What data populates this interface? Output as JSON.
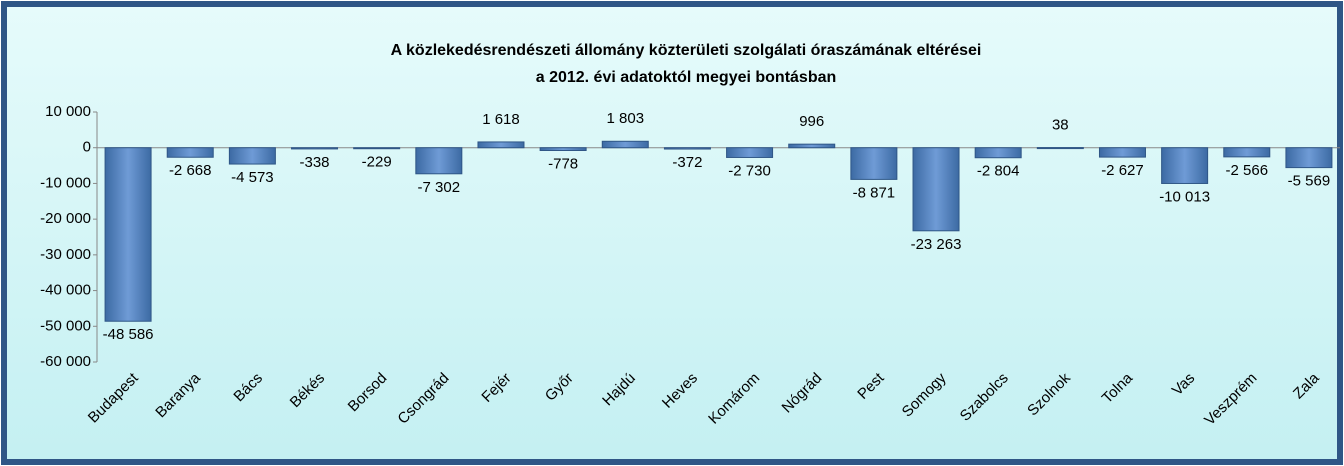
{
  "chart_data": {
    "type": "bar",
    "title": [
      "A közlekedésrendészeti állomány  közterületi szolgálati óraszámának eltérései",
      "a 2012. évi adatoktól megyei bontásban"
    ],
    "categories": [
      "Budapest",
      "Baranya",
      "Bács",
      "Békés",
      "Borsod",
      "Csongrád",
      "Fejér",
      "Győr",
      "Hajdú",
      "Heves",
      "Komárom",
      "Nógrád",
      "Pest",
      "Somogy",
      "Szabolcs",
      "Szolnok",
      "Tolna",
      "Vas",
      "Veszprém",
      "Zala"
    ],
    "values": [
      -48586,
      -2668,
      -4573,
      -338,
      -229,
      -7302,
      1618,
      -778,
      1803,
      -372,
      -2730,
      996,
      -8871,
      -23263,
      -2804,
      38,
      -2627,
      -10013,
      -2566,
      -5569
    ],
    "value_labels": [
      "-48 586",
      "-2 668",
      "-4 573",
      "-338",
      "-229",
      "-7 302",
      "1 618",
      "-778",
      "1 803",
      "-372",
      "-2 730",
      "996",
      "-8 871",
      "-23 263",
      "-2 804",
      "38",
      "-2 627",
      "-10 013",
      "-2 566",
      "-5 569"
    ],
    "color": "#4f81bd",
    "ylim": [
      -60000,
      10000
    ],
    "yticks": [
      {
        "value": -60000,
        "label": "-60 000"
      },
      {
        "value": -50000,
        "label": "-50 000"
      },
      {
        "value": -40000,
        "label": "-40 000"
      },
      {
        "value": -30000,
        "label": "-30 000"
      },
      {
        "value": -20000,
        "label": "-20 000"
      },
      {
        "value": -10000,
        "label": "-10 000"
      },
      0,
      {
        "value": 10000,
        "label": "10 000"
      }
    ],
    "grid": false
  }
}
